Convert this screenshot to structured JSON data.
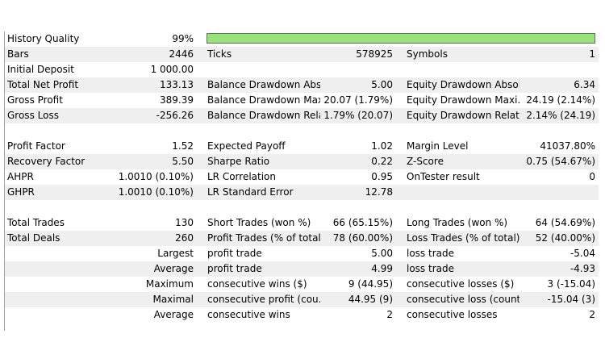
{
  "history": {
    "label": "History Quality",
    "value": "99%",
    "quality_fraction": 0.99,
    "bar_color": "#98e27a"
  },
  "summary": [
    {
      "l1": "Bars",
      "v1": "2446",
      "l2": "Ticks",
      "v2": "578925",
      "l3": "Symbols",
      "v3": "1"
    },
    {
      "l1": "Initial Deposit",
      "v1": "1 000.00",
      "l2": "",
      "v2": "",
      "l3": "",
      "v3": ""
    },
    {
      "l1": "Total Net Profit",
      "v1": "133.13",
      "l2": "Balance Drawdown Abs...",
      "v2": "5.00",
      "l3": "Equity Drawdown Absol...",
      "v3": "6.34"
    },
    {
      "l1": "Gross Profit",
      "v1": "389.39",
      "l2": "Balance Drawdown Max...",
      "v2": "20.07 (1.79%)",
      "l3": "Equity Drawdown Maxi...",
      "v3": "24.19 (2.14%)"
    },
    {
      "l1": "Gross Loss",
      "v1": "-256.26",
      "l2": "Balance Drawdown Rela...",
      "v2": "1.79% (20.07)",
      "l3": "Equity Drawdown Relati...",
      "v3": "2.14% (24.19)"
    }
  ],
  "ratios": [
    {
      "l1": "Profit Factor",
      "v1": "1.52",
      "l2": "Expected Payoff",
      "v2": "1.02",
      "l3": "Margin Level",
      "v3": "41037.80%"
    },
    {
      "l1": "Recovery Factor",
      "v1": "5.50",
      "l2": "Sharpe Ratio",
      "v2": "0.22",
      "l3": "Z-Score",
      "v3": "0.75 (54.67%)"
    },
    {
      "l1": "AHPR",
      "v1": "1.0010 (0.10%)",
      "l2": "LR Correlation",
      "v2": "0.95",
      "l3": "OnTester result",
      "v3": "0"
    },
    {
      "l1": "GHPR",
      "v1": "1.0010 (0.10%)",
      "l2": "LR Standard Error",
      "v2": "12.78",
      "l3": "",
      "v3": ""
    }
  ],
  "trades": [
    {
      "l1": "Total Trades",
      "v1": "130",
      "l2": "Short Trades (won %)",
      "v2": "66 (65.15%)",
      "l3": "Long Trades (won %)",
      "v3": "64 (54.69%)"
    },
    {
      "l1": "Total Deals",
      "v1": "260",
      "l2": "Profit Trades (% of total)",
      "v2": "78 (60.00%)",
      "l3": "Loss Trades (% of total)",
      "v3": "52 (40.00%)"
    },
    {
      "l1": "",
      "v1": "Largest",
      "l2": "profit trade",
      "v2": "5.00",
      "l3": "loss trade",
      "v3": "-5.04"
    },
    {
      "l1": "",
      "v1": "Average",
      "l2": "profit trade",
      "v2": "4.99",
      "l3": "loss trade",
      "v3": "-4.93"
    },
    {
      "l1": "",
      "v1": "Maximum",
      "l2": "consecutive wins ($)",
      "v2": "9 (44.95)",
      "l3": "consecutive losses ($)",
      "v3": "3 (-15.04)"
    },
    {
      "l1": "",
      "v1": "Maximal",
      "l2": "consecutive profit (cou...",
      "v2": "44.95 (9)",
      "l3": "consecutive loss (count)",
      "v3": "-15.04 (3)"
    },
    {
      "l1": "",
      "v1": "Average",
      "l2": "consecutive wins",
      "v2": "2",
      "l3": "consecutive losses",
      "v3": "2"
    }
  ]
}
